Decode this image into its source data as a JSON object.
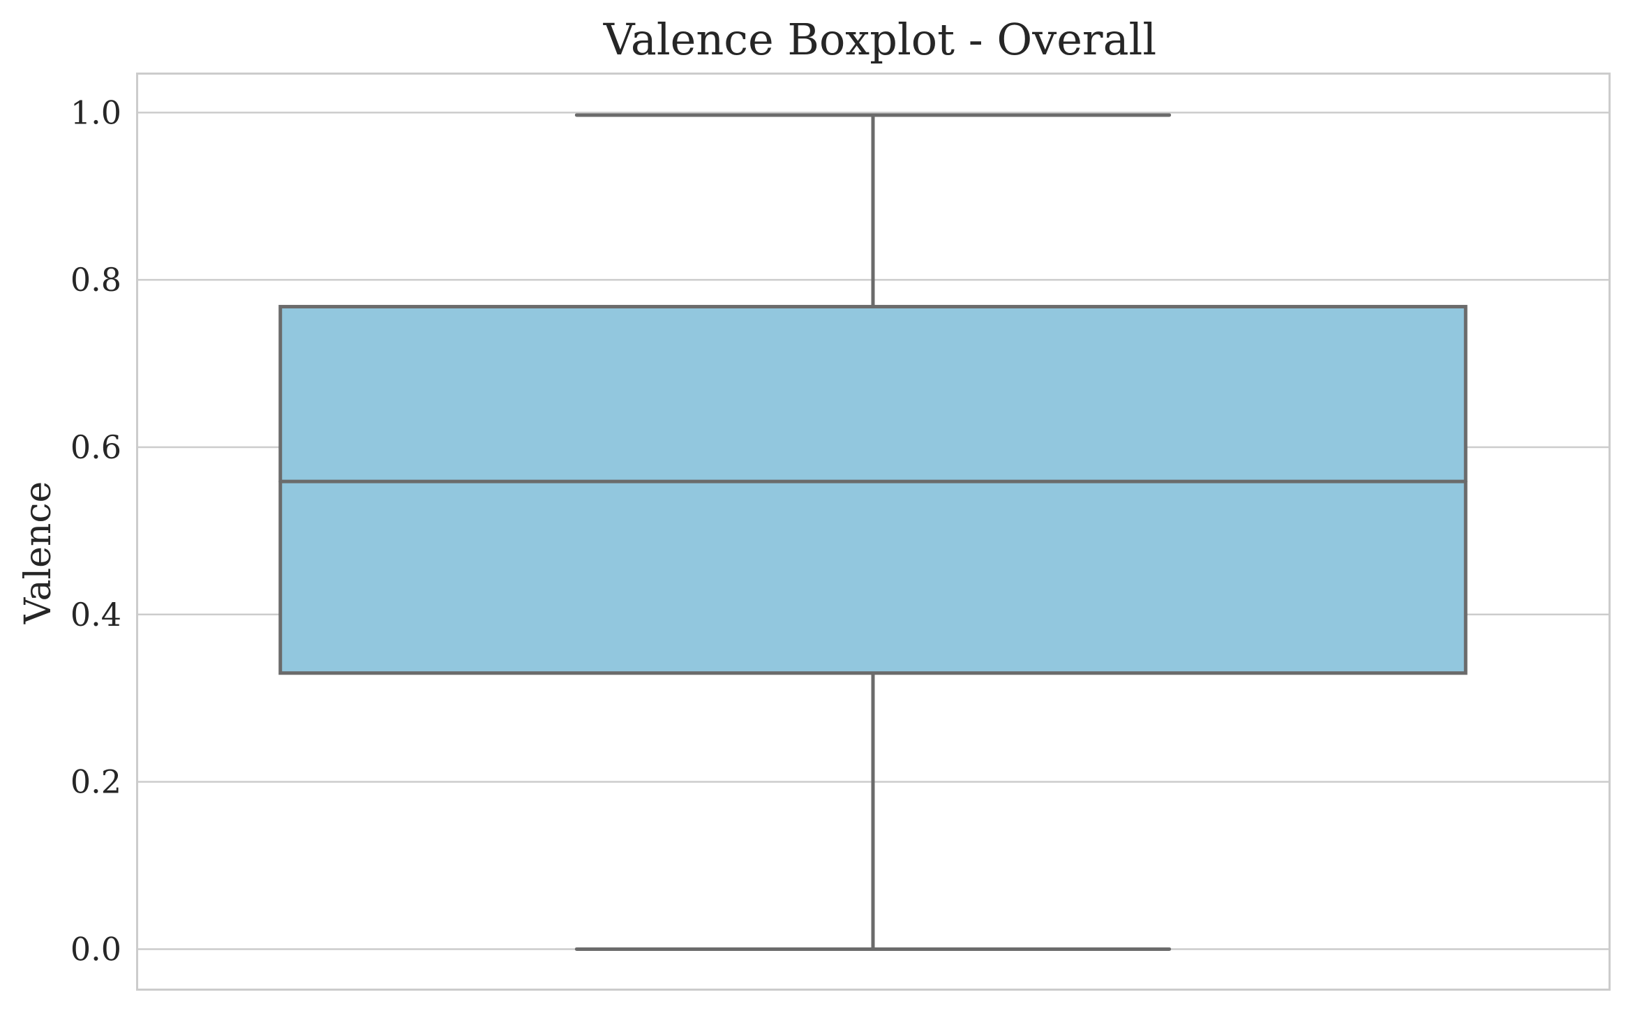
{
  "chart_data": {
    "type": "box",
    "title": "Valence Boxplot - Overall",
    "xlabel": "",
    "ylabel": "Valence",
    "ylim": [
      -0.048,
      1.047
    ],
    "yticks": [
      0.0,
      0.2,
      0.4,
      0.6,
      0.8,
      1.0
    ],
    "ytick_labels": [
      "0.0",
      "0.2",
      "0.4",
      "0.6",
      "0.8",
      "1.0"
    ],
    "grid": "horizontal",
    "legend": "none",
    "series": [
      {
        "min": 0.0,
        "q1": 0.33,
        "median": 0.559,
        "q3": 0.768,
        "max": 0.997
      }
    ],
    "colors": {
      "box_fill": "#92c7de",
      "line": "#6b6b6b",
      "grid": "#cccccc"
    }
  }
}
